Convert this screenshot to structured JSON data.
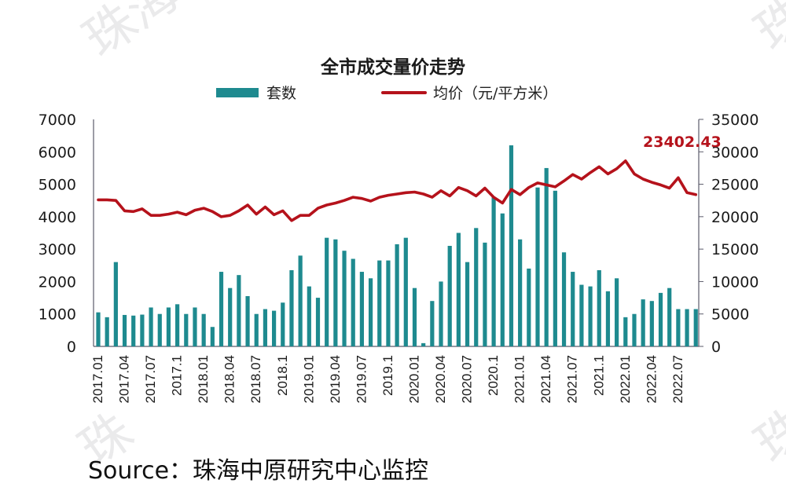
{
  "chart_data": {
    "type": "bar+line",
    "title": "全市成交量价走势",
    "legend": [
      {
        "name": "套数",
        "type": "bar",
        "color": "#1e8a8f",
        "axis": "left"
      },
      {
        "name": "均价（元/平方米）",
        "type": "line",
        "color": "#b5121b",
        "axis": "right"
      }
    ],
    "x_tick_labels": [
      "2017.01",
      "2017.04",
      "2017.07",
      "2017.1",
      "2018.01",
      "2018.04",
      "2018.07",
      "2018.1",
      "2019.01",
      "2019.04",
      "2019.07",
      "2019.1",
      "2020.01",
      "2020.04",
      "2020.07",
      "2020.1",
      "2021.01",
      "2021.04",
      "2021.07",
      "2021.1",
      "2022.01",
      "2022.04",
      "2022.07"
    ],
    "x": [
      "2017.01",
      "2017.02",
      "2017.03",
      "2017.04",
      "2017.05",
      "2017.06",
      "2017.07",
      "2017.08",
      "2017.09",
      "2017.10",
      "2017.11",
      "2017.12",
      "2018.01",
      "2018.02",
      "2018.03",
      "2018.04",
      "2018.05",
      "2018.06",
      "2018.07",
      "2018.08",
      "2018.09",
      "2018.10",
      "2018.11",
      "2018.12",
      "2019.01",
      "2019.02",
      "2019.03",
      "2019.04",
      "2019.05",
      "2019.06",
      "2019.07",
      "2019.08",
      "2019.09",
      "2019.10",
      "2019.11",
      "2019.12",
      "2020.01",
      "2020.02",
      "2020.03",
      "2020.04",
      "2020.05",
      "2020.06",
      "2020.07",
      "2020.08",
      "2020.09",
      "2020.10",
      "2020.11",
      "2020.12",
      "2021.01",
      "2021.02",
      "2021.03",
      "2021.04",
      "2021.05",
      "2021.06",
      "2021.07",
      "2021.08",
      "2021.09",
      "2021.10",
      "2021.11",
      "2021.12",
      "2022.01",
      "2022.02",
      "2022.03",
      "2022.04",
      "2022.05",
      "2022.06",
      "2022.07",
      "2022.08",
      "2022.09"
    ],
    "series": [
      {
        "name": "套数",
        "axis": "left",
        "values": [
          1050,
          900,
          2600,
          970,
          950,
          980,
          1200,
          1000,
          1200,
          1300,
          1000,
          1200,
          1000,
          600,
          2300,
          1800,
          2200,
          1550,
          1000,
          1150,
          1100,
          1350,
          2350,
          2800,
          1850,
          1500,
          3350,
          3300,
          2950,
          2700,
          2300,
          2100,
          2650,
          2650,
          3150,
          3350,
          1800,
          100,
          1400,
          2000,
          3100,
          3500,
          2600,
          3650,
          3200,
          4600,
          4100,
          6200,
          3300,
          2400,
          4900,
          5500,
          4800,
          2900,
          2300,
          1900,
          1850,
          2350,
          1700,
          2100,
          900,
          1000,
          1450,
          1400,
          1650,
          1800,
          1150,
          1150,
          1150
        ]
      },
      {
        "name": "均价（元/平方米）",
        "axis": "right",
        "values": [
          22600,
          22600,
          22500,
          20900,
          20800,
          21200,
          20200,
          20200,
          20400,
          20700,
          20300,
          21000,
          21300,
          20800,
          20000,
          20200,
          20900,
          21800,
          20400,
          21500,
          20300,
          20900,
          19400,
          20200,
          20200,
          21300,
          21800,
          22100,
          22500,
          23000,
          22800,
          22400,
          23000,
          23300,
          23500,
          23700,
          23800,
          23500,
          23000,
          24000,
          23200,
          24500,
          24000,
          23200,
          24400,
          23000,
          22100,
          24200,
          23400,
          24500,
          25200,
          24900,
          24600,
          25500,
          26500,
          25800,
          26800,
          27700,
          26600,
          27400,
          28600,
          26600,
          25800,
          25300,
          24900,
          24400,
          26000,
          23700,
          23402.43
        ]
      }
    ],
    "annotations": [
      {
        "text": "23402.43",
        "series": "均价（元/平方米）",
        "point": "2022.09"
      }
    ],
    "y_left": {
      "ticks": [
        0,
        1000,
        2000,
        3000,
        4000,
        5000,
        6000,
        7000
      ],
      "ylim": [
        0,
        7000
      ]
    },
    "y_right": {
      "ticks": [
        0,
        5000,
        10000,
        15000,
        20000,
        25000,
        30000,
        35000
      ],
      "ylim": [
        0,
        35000
      ]
    },
    "grid": false,
    "legend_position": "top"
  },
  "header": {
    "title": "全市成交量价走势",
    "legend_bar_label": "套数",
    "legend_line_label": "均价（元/平方米）"
  },
  "annotation_label": "23402.43",
  "footer": {
    "source": "Source：珠海中原研究中心监控"
  },
  "watermark": {
    "text_1": "珠海",
    "text_2": "珠"
  },
  "colors": {
    "bar": "#1e8a8f",
    "line": "#b5121b",
    "annotation": "#b5121b"
  }
}
